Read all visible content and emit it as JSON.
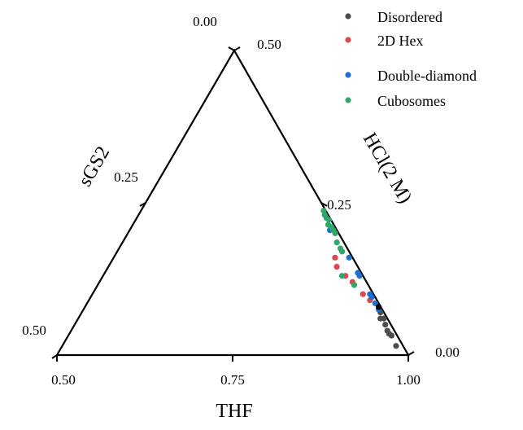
{
  "chart_data": {
    "type": "scatter",
    "subtype": "ternary",
    "axes": {
      "bottom": {
        "label": "THF",
        "ticks": [
          "0.50",
          "0.75",
          "1.00"
        ],
        "range": [
          0.5,
          1.0
        ]
      },
      "left": {
        "label": "sGS2",
        "ticks": [
          "0.50",
          "0.25",
          "0.00"
        ],
        "range": [
          0.0,
          0.5
        ]
      },
      "right": {
        "label": "HCl(2 M)",
        "ticks": [
          "0.00",
          "0.25",
          "0.50"
        ],
        "range": [
          0.0,
          0.5
        ]
      }
    },
    "legend_position": "top-right",
    "grid": false,
    "series": [
      {
        "name": "Disordered",
        "color": "#4d4d4d",
        "points": [
          {
            "THF": 0.925,
            "sGS2": 0.005,
            "HCl": 0.07
          },
          {
            "THF": 0.93,
            "sGS2": 0.01,
            "HCl": 0.06
          },
          {
            "THF": 0.935,
            "sGS2": 0.005,
            "HCl": 0.06
          },
          {
            "THF": 0.942,
            "sGS2": 0.008,
            "HCl": 0.05
          },
          {
            "THF": 0.95,
            "sGS2": 0.01,
            "HCl": 0.04
          },
          {
            "THF": 0.955,
            "sGS2": 0.01,
            "HCl": 0.035
          },
          {
            "THF": 0.96,
            "sGS2": 0.008,
            "HCl": 0.032
          },
          {
            "THF": 0.975,
            "sGS2": 0.01,
            "HCl": 0.015
          }
        ]
      },
      {
        "name": "2D Hex",
        "color": "#e0474c",
        "points": [
          {
            "THF": 0.815,
            "sGS2": 0.025,
            "HCl": 0.16
          },
          {
            "THF": 0.825,
            "sGS2": 0.03,
            "HCl": 0.145
          },
          {
            "THF": 0.845,
            "sGS2": 0.025,
            "HCl": 0.13
          },
          {
            "THF": 0.86,
            "sGS2": 0.02,
            "HCl": 0.12
          },
          {
            "THF": 0.885,
            "sGS2": 0.015,
            "HCl": 0.1
          },
          {
            "THF": 0.9,
            "sGS2": 0.01,
            "HCl": 0.09
          }
        ]
      },
      {
        "name": "Double-diamond",
        "color": "#1f6fd1",
        "points": [
          {
            "THF": 0.785,
            "sGS2": 0.01,
            "HCl": 0.205
          },
          {
            "THF": 0.835,
            "sGS2": 0.005,
            "HCl": 0.16
          },
          {
            "THF": 0.86,
            "sGS2": 0.005,
            "HCl": 0.135
          },
          {
            "THF": 0.865,
            "sGS2": 0.005,
            "HCl": 0.13
          },
          {
            "THF": 0.895,
            "sGS2": 0.005,
            "HCl": 0.1
          },
          {
            "THF": 0.9,
            "sGS2": 0.005,
            "HCl": 0.095
          },
          {
            "THF": 0.91,
            "sGS2": 0.005,
            "HCl": 0.085
          },
          {
            "THF": 0.92,
            "sGS2": 0.005,
            "HCl": 0.075
          }
        ]
      },
      {
        "name": "Cubosomes",
        "color": "#2ea86a",
        "points": [
          {
            "THF": 0.76,
            "sGS2": 0.003,
            "HCl": 0.237
          },
          {
            "THF": 0.765,
            "sGS2": 0.005,
            "HCl": 0.23
          },
          {
            "THF": 0.77,
            "sGS2": 0.005,
            "HCl": 0.225
          },
          {
            "THF": 0.775,
            "sGS2": 0.003,
            "HCl": 0.222
          },
          {
            "THF": 0.778,
            "sGS2": 0.008,
            "HCl": 0.214
          },
          {
            "THF": 0.785,
            "sGS2": 0.005,
            "HCl": 0.21
          },
          {
            "THF": 0.79,
            "sGS2": 0.005,
            "HCl": 0.205
          },
          {
            "THF": 0.795,
            "sGS2": 0.005,
            "HCl": 0.2
          },
          {
            "THF": 0.805,
            "sGS2": 0.01,
            "HCl": 0.185
          },
          {
            "THF": 0.815,
            "sGS2": 0.01,
            "HCl": 0.175
          },
          {
            "THF": 0.82,
            "sGS2": 0.01,
            "HCl": 0.17
          },
          {
            "THF": 0.84,
            "sGS2": 0.03,
            "HCl": 0.13
          },
          {
            "THF": 0.865,
            "sGS2": 0.02,
            "HCl": 0.115
          }
        ]
      },
      {
        "name": "",
        "color": "#000000",
        "points": [
          {
            "THF": 0.918,
            "sGS2": 0.003,
            "HCl": 0.079
          }
        ]
      }
    ]
  }
}
